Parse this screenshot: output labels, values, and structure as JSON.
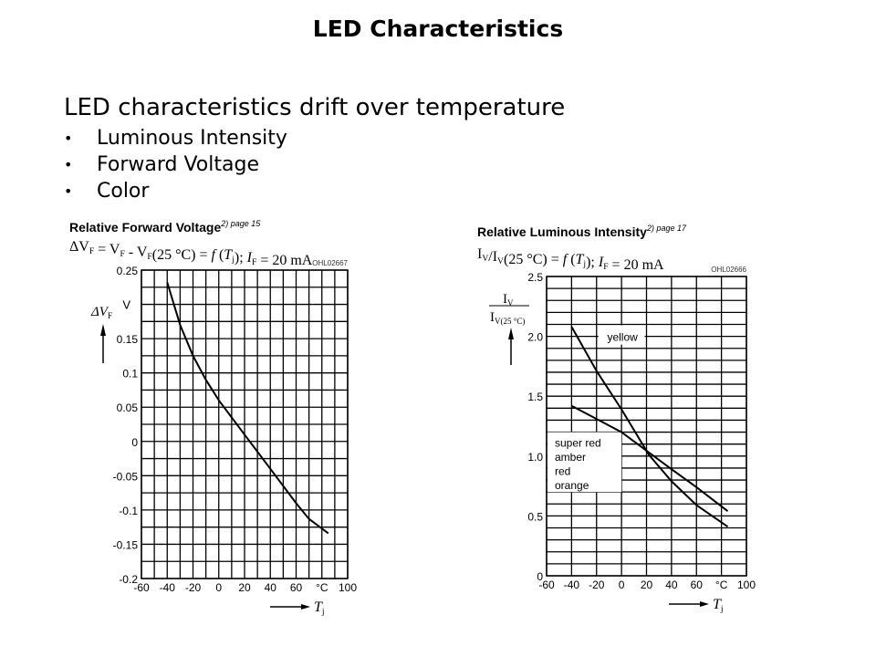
{
  "slide": {
    "title": "LED Characteristics",
    "heading": "LED characteristics drift over temperature",
    "bullet_glyph": "•",
    "bullets": [
      "Luminous Intensity",
      "Forward Voltage",
      "Color"
    ]
  },
  "chart_data": [
    {
      "type": "line",
      "title": "Relative Forward Voltage",
      "title_sup": "2)",
      "title_ref": "page 15",
      "subtitle_parts": [
        [
          "ΔV",
          ""
        ],
        [
          "F",
          "sub"
        ],
        [
          " = V",
          ""
        ],
        [
          "F",
          "sub"
        ],
        [
          " - V",
          ""
        ],
        [
          "F",
          "sub"
        ],
        [
          "(25 °C) = ",
          ""
        ],
        [
          "f",
          "i"
        ],
        [
          " (",
          ""
        ],
        [
          "T",
          "i"
        ],
        [
          "j",
          "sub"
        ],
        [
          "); ",
          ""
        ],
        [
          "I",
          "i"
        ],
        [
          "F",
          "sub"
        ],
        [
          " = 20 mA",
          ""
        ]
      ],
      "code": "OHL02667",
      "ylabel": "ΔV",
      "ylabel_sub": "F",
      "yunit": "V",
      "xlabel": "T",
      "xlabel_sub": "j",
      "xunit": "°C",
      "xlim": [
        -60,
        100
      ],
      "ylim": [
        -0.2,
        0.25
      ],
      "x_grid_step": 10,
      "y_grid_step": 0.025,
      "grid": true,
      "xticks": [
        "-60",
        "-40",
        "-20",
        "0",
        "20",
        "40",
        "60",
        "°C",
        "100"
      ],
      "xtick_values": [
        -60,
        -40,
        -20,
        0,
        20,
        40,
        60,
        80,
        100
      ],
      "yticks": [
        "0.25",
        "0.15",
        "0.1",
        "0.05",
        "0",
        "-0.05",
        "-0.1",
        "-0.15",
        "-0.2"
      ],
      "ytick_values": [
        0.25,
        0.15,
        0.1,
        0.05,
        0,
        -0.05,
        -0.1,
        -0.15,
        -0.2
      ],
      "series": [
        {
          "x": [
            -40,
            -30,
            -20,
            -10,
            0,
            10,
            20,
            30,
            40,
            50,
            60,
            70,
            85
          ],
          "y": [
            0.232,
            0.17,
            0.125,
            0.09,
            0.06,
            0.035,
            0.01,
            -0.015,
            -0.04,
            -0.065,
            -0.09,
            -0.113,
            -0.134
          ]
        }
      ]
    },
    {
      "type": "line",
      "title": "Relative Luminous Intensity",
      "title_sup": "2)",
      "title_ref": "page 17",
      "subtitle_parts": [
        [
          "I",
          ""
        ],
        [
          "V",
          "sub"
        ],
        [
          "/I",
          ""
        ],
        [
          "V",
          "sub"
        ],
        [
          "(25 °C) = ",
          ""
        ],
        [
          "f",
          "i"
        ],
        [
          " (",
          ""
        ],
        [
          "T",
          "i"
        ],
        [
          "j",
          "sub"
        ],
        [
          "); ",
          ""
        ],
        [
          "I",
          "i"
        ],
        [
          "F",
          "sub"
        ],
        [
          " = 20 mA",
          ""
        ]
      ],
      "code": "OHL02666",
      "ylabel_num": "I",
      "ylabel_num_sub": "V",
      "ylabel_den": "I",
      "ylabel_den_sub": "V(25 °C)",
      "xlabel": "T",
      "xlabel_sub": "j",
      "xunit": "°C",
      "xlim": [
        -60,
        100
      ],
      "ylim": [
        0,
        2.5
      ],
      "x_grid_step": 20,
      "y_grid_step": 0.1,
      "grid": true,
      "xticks": [
        "-60",
        "-40",
        "-20",
        "0",
        "20",
        "40",
        "60",
        "°C",
        "100"
      ],
      "xtick_values": [
        -60,
        -40,
        -20,
        0,
        20,
        40,
        60,
        80,
        100
      ],
      "yticks": [
        "2.5",
        "2.0",
        "1.5",
        "1.0",
        "0.5",
        "0"
      ],
      "ytick_values": [
        2.5,
        2.0,
        1.5,
        1.0,
        0.5,
        0
      ],
      "series": [
        {
          "name": "yellow",
          "x": [
            -40,
            -20,
            0,
            22,
            40,
            60,
            85
          ],
          "y": [
            2.08,
            1.71,
            1.39,
            1.01,
            0.79,
            0.59,
            0.41
          ]
        },
        {
          "name": "super red / amber / red / orange",
          "labels": [
            "super red",
            "amber",
            "red",
            "orange"
          ],
          "x": [
            -40,
            -20,
            0,
            22,
            40,
            60,
            85
          ],
          "y": [
            1.42,
            1.31,
            1.2,
            1.03,
            0.89,
            0.74,
            0.54
          ]
        }
      ]
    }
  ]
}
